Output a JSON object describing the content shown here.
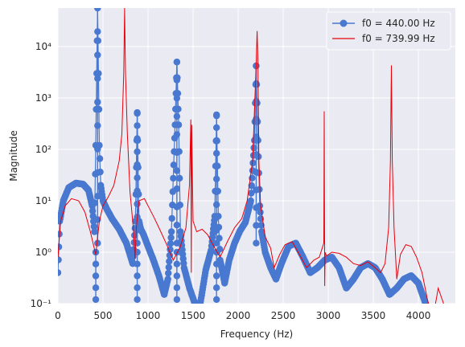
{
  "chart_data": {
    "type": "line",
    "xlabel": "Frequency (Hz)",
    "ylabel": "Magnitude",
    "xlim": [
      0,
      4410
    ],
    "ylim": [
      0.1,
      56000
    ],
    "yscale": "log",
    "xticks": [
      0,
      500,
      1000,
      1500,
      2000,
      2500,
      3000,
      3500,
      4000
    ],
    "xtick_labels": [
      "0",
      "500",
      "1000",
      "1500",
      "2000",
      "2500",
      "3000",
      "3500",
      "4000"
    ],
    "yticks": [
      0.1,
      1,
      10,
      100,
      1000,
      10000
    ],
    "ytick_labels": [
      "10⁻¹",
      "10⁰",
      "10¹",
      "10²",
      "10³",
      "10⁴"
    ],
    "grid": true,
    "legend": "top-right",
    "series": [
      {
        "name": "f0 = 440.00 Hz",
        "color": "#4878d0",
        "marker": "o",
        "envelope": {
          "x": [
            0,
            20,
            60,
            120,
            200,
            280,
            340,
            380,
            405,
            420,
            430,
            440,
            450,
            460,
            475,
            500,
            540,
            600,
            680,
            760,
            830,
            860,
            880,
            900,
            920,
            950,
            1000,
            1060,
            1120,
            1180,
            1220,
            1260,
            1300,
            1320,
            1340,
            1360,
            1400,
            1460,
            1520,
            1580,
            1640,
            1700,
            1740,
            1760,
            1780,
            1800,
            1850,
            1900,
            1960,
            2020,
            2080,
            2140,
            2180,
            2200,
            2220,
            2240,
            2260,
            2300,
            2360,
            2420,
            2480,
            2560,
            2640,
            2720,
            2800,
            2880,
            2960,
            3040,
            3120,
            3200,
            3280,
            3360,
            3440,
            3520,
            3600,
            3680,
            3760,
            3840,
            3920,
            4000,
            4080
          ],
          "y": [
            0.4,
            4,
            10,
            18,
            22,
            21,
            16,
            8,
            2.5,
            120,
            3000,
            56000,
            3000,
            120,
            20,
            10,
            7,
            4.5,
            2.8,
            1.5,
            0.6,
            4,
            500,
            4,
            2.8,
            2.2,
            1.3,
            0.7,
            0.35,
            0.15,
            0.3,
            2.5,
            300,
            5000,
            300,
            2.5,
            0.5,
            0.2,
            0.1,
            0.1,
            0.45,
            1.1,
            5,
            450,
            5,
            0.7,
            0.25,
            0.7,
            1.5,
            2.6,
            3.8,
            10,
            150,
            4200,
            150,
            8,
            2.5,
            1,
            0.5,
            0.3,
            0.6,
            1.3,
            1.5,
            0.8,
            0.4,
            0.5,
            0.7,
            0.8,
            0.5,
            0.2,
            0.3,
            0.5,
            0.6,
            0.5,
            0.3,
            0.15,
            0.2,
            0.3,
            0.35,
            0.25,
            0.1
          ]
        },
        "peaks": [
          {
            "x": 440,
            "y": 56000
          },
          {
            "x": 880,
            "y": 520
          },
          {
            "x": 1320,
            "y": 5000
          },
          {
            "x": 1760,
            "y": 470
          },
          {
            "x": 2200,
            "y": 4200
          }
        ],
        "dips": [
          {
            "x": 420,
            "y": 0.12
          },
          {
            "x": 880,
            "y": 0.12
          },
          {
            "x": 1320,
            "y": 0.12
          },
          {
            "x": 1760,
            "y": 0.12
          }
        ]
      },
      {
        "name": "f0 = 739.99 Hz",
        "color": "#e8000b",
        "x": [
          0,
          30,
          80,
          150,
          230,
          300,
          360,
          420,
          460,
          500,
          560,
          620,
          680,
          710,
          730,
          740,
          750,
          770,
          800,
          840,
          855,
          870,
          900,
          960,
          1000,
          1060,
          1120,
          1200,
          1280,
          1360,
          1420,
          1460,
          1475,
          1480,
          1485,
          1500,
          1540,
          1600,
          1660,
          1720,
          1800,
          1880,
          1960,
          2040,
          2100,
          2160,
          2200,
          2210,
          2220,
          2230,
          2250,
          2300,
          2360,
          2400,
          2460,
          2520,
          2600,
          2680,
          2760,
          2840,
          2900,
          2950,
          2955,
          2960,
          2965,
          2980,
          3040,
          3120,
          3200,
          3280,
          3360,
          3440,
          3520,
          3580,
          3630,
          3670,
          3690,
          3700,
          3710,
          3730,
          3760,
          3800,
          3860,
          3920,
          3980,
          4040,
          4100,
          4160,
          4220,
          4280
        ],
        "y": [
          0.8,
          4,
          8,
          11,
          10,
          6,
          2.5,
          0.9,
          4,
          8,
          12,
          20,
          60,
          200,
          3000,
          56000,
          3000,
          200,
          15,
          2.5,
          0.75,
          3,
          10,
          11,
          8,
          5,
          3,
          1.5,
          0.7,
          1.3,
          3,
          20,
          380,
          0.4,
          300,
          4,
          2.5,
          2.8,
          2.2,
          1.4,
          0.8,
          1.6,
          3,
          4.5,
          10,
          60,
          4500,
          20000,
          4500,
          60,
          8,
          2,
          1.2,
          0.5,
          0.9,
          1.4,
          1.6,
          0.9,
          0.5,
          0.7,
          0.8,
          1.5,
          550,
          0.22,
          1,
          0.85,
          1,
          0.95,
          0.8,
          0.6,
          0.55,
          0.65,
          0.5,
          0.4,
          0.6,
          3,
          60,
          4300,
          60,
          3,
          0.3,
          0.9,
          1.4,
          1.3,
          0.8,
          0.4,
          0.12,
          0.05,
          0.2,
          0.1
        ]
      }
    ]
  }
}
